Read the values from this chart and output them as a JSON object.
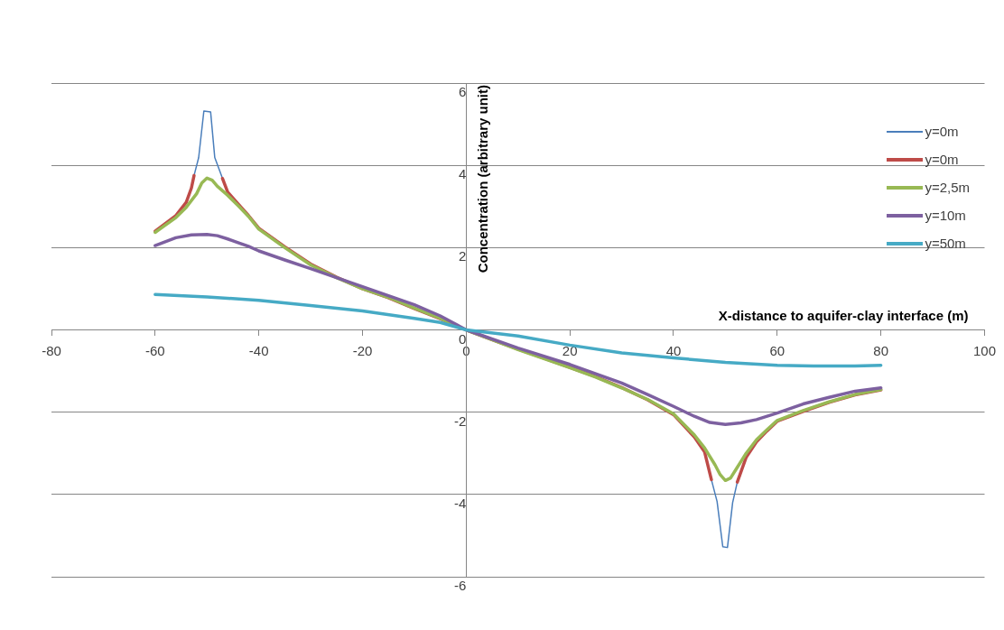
{
  "chart_data": {
    "type": "line",
    "xlabel": "X-distance to aquifer-clay interface (m)",
    "ylabel": "Concentration (arbitrary unit)",
    "xlim": [
      -80,
      100
    ],
    "xticks": [
      -80,
      -60,
      -40,
      -20,
      0,
      20,
      40,
      60,
      80,
      100
    ],
    "ylim": [
      -6,
      6
    ],
    "yticks": [
      -6,
      -4,
      -2,
      0,
      2,
      4,
      6
    ],
    "grid": "y",
    "legend": "top right",
    "marker": "none",
    "line_style": "solid",
    "series": [
      {
        "name": "y=0m",
        "color": "#4a7ebb",
        "x": [
          -52.5,
          -51.6,
          -50.6,
          -49.3,
          -48.5,
          -47,
          0,
          47.3,
          48.4,
          49.5,
          50.4,
          51.4,
          52.3
        ],
        "values": [
          3.75,
          4.19,
          5.32,
          5.3,
          4.19,
          3.68,
          null,
          -3.64,
          -4.17,
          -5.27,
          -5.29,
          -4.2,
          -3.7
        ]
      },
      {
        "name": "y=0m",
        "color": "#be4b48",
        "x": [
          -60,
          -56,
          -54,
          -53,
          -52.5,
          -50,
          -47,
          -46,
          -44,
          -42,
          -40,
          -35,
          -30,
          -25,
          -20,
          -15,
          -10,
          -5,
          0,
          5,
          10,
          15,
          20,
          25,
          30,
          35,
          40,
          44,
          46,
          47.3,
          50,
          52.3,
          54,
          56,
          58,
          60,
          65,
          70,
          75,
          80
        ],
        "values": [
          2.4,
          2.78,
          3.1,
          3.45,
          3.75,
          null,
          3.68,
          3.35,
          3.06,
          2.78,
          2.47,
          2.02,
          1.6,
          1.28,
          1.0,
          0.78,
          0.52,
          0.27,
          0,
          -0.24,
          -0.47,
          -0.69,
          -0.91,
          -1.14,
          -1.4,
          -1.7,
          -2.06,
          -2.6,
          -2.97,
          -3.64,
          null,
          -3.7,
          -3.1,
          -2.72,
          -2.46,
          -2.22,
          -1.98,
          -1.76,
          -1.58,
          -1.46
        ]
      },
      {
        "name": "y=2,5m",
        "color": "#98b954",
        "x": [
          -60,
          -56,
          -54,
          -52,
          -51,
          -50,
          -49,
          -48,
          -46,
          -44,
          -42,
          -40,
          -35,
          -30,
          -25,
          -20,
          -15,
          -10,
          -5,
          0,
          5,
          10,
          15,
          20,
          25,
          30,
          35,
          40,
          44,
          46,
          48,
          49,
          50,
          51,
          52,
          54,
          56,
          58,
          60,
          65,
          70,
          75,
          80
        ],
        "values": [
          2.37,
          2.73,
          2.98,
          3.31,
          3.57,
          3.69,
          3.64,
          3.49,
          3.27,
          3.02,
          2.76,
          2.45,
          2.0,
          1.58,
          1.27,
          1.0,
          0.79,
          0.53,
          0.28,
          0,
          -0.24,
          -0.48,
          -0.7,
          -0.92,
          -1.15,
          -1.41,
          -1.69,
          -2.04,
          -2.55,
          -2.87,
          -3.28,
          -3.52,
          -3.66,
          -3.6,
          -3.4,
          -3.0,
          -2.67,
          -2.43,
          -2.2,
          -1.96,
          -1.75,
          -1.57,
          -1.45
        ]
      },
      {
        "name": "y=10m",
        "color": "#7d60a0",
        "x": [
          -60,
          -56,
          -53,
          -50,
          -48,
          -46,
          -44,
          -42,
          -40,
          -35,
          -30,
          -25,
          -20,
          -15,
          -10,
          -5,
          0,
          10,
          20,
          30,
          35,
          40,
          44,
          47,
          50,
          53,
          56,
          60,
          65,
          70,
          75,
          80
        ],
        "values": [
          2.05,
          2.24,
          2.31,
          2.32,
          2.29,
          2.21,
          2.12,
          2.03,
          1.92,
          1.7,
          1.49,
          1.27,
          1.05,
          0.83,
          0.61,
          0.34,
          0,
          -0.44,
          -0.84,
          -1.29,
          -1.57,
          -1.86,
          -2.1,
          -2.25,
          -2.3,
          -2.26,
          -2.18,
          -2.02,
          -1.8,
          -1.64,
          -1.49,
          -1.41
        ]
      },
      {
        "name": "y=50m",
        "color": "#46aac5",
        "x": [
          -60,
          -50,
          -40,
          -30,
          -20,
          -10,
          -5,
          0,
          10,
          20,
          30,
          40,
          50,
          60,
          67,
          75,
          80
        ],
        "values": [
          0.86,
          0.8,
          0.72,
          0.59,
          0.46,
          0.28,
          0.18,
          0,
          -0.15,
          -0.37,
          -0.56,
          -0.68,
          -0.79,
          -0.86,
          -0.88,
          -0.88,
          -0.86
        ]
      }
    ]
  }
}
